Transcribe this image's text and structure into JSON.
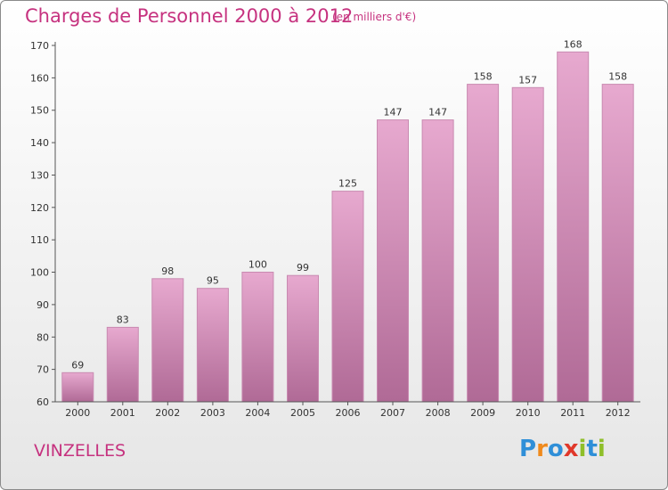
{
  "header": {
    "title": "Charges de Personnel 2000 à 2012",
    "unit_note": "(en milliers d'€)"
  },
  "footer": {
    "commune": "VINZELLES",
    "logo_letters": [
      "P",
      "r",
      "o",
      "x",
      "i",
      "t",
      "i"
    ],
    "logo_colors": [
      "#2f8fd8",
      "#f08a1c",
      "#2f8fd8",
      "#e0382a",
      "#8fbf2a",
      "#2f8fd8",
      "#8fbf2a"
    ]
  },
  "colors": {
    "title": "#c6327f",
    "bar_top": "#e7a9cf",
    "bar_bottom": "#b06a96",
    "bar_stroke": "#c98ab1"
  },
  "chart_data": {
    "type": "bar",
    "title": "Charges de Personnel 2000 à 2012",
    "subtitle": "(en milliers d'€)",
    "categories": [
      "2000",
      "2001",
      "2002",
      "2003",
      "2004",
      "2005",
      "2006",
      "2007",
      "2008",
      "2009",
      "2010",
      "2011",
      "2012"
    ],
    "values": [
      69,
      83,
      98,
      95,
      100,
      99,
      125,
      147,
      147,
      158,
      157,
      168,
      158
    ],
    "ylim": [
      60,
      170
    ],
    "yticks": [
      60,
      70,
      80,
      90,
      100,
      110,
      120,
      130,
      140,
      150,
      160,
      170
    ],
    "grid": false,
    "data_labels": true
  }
}
